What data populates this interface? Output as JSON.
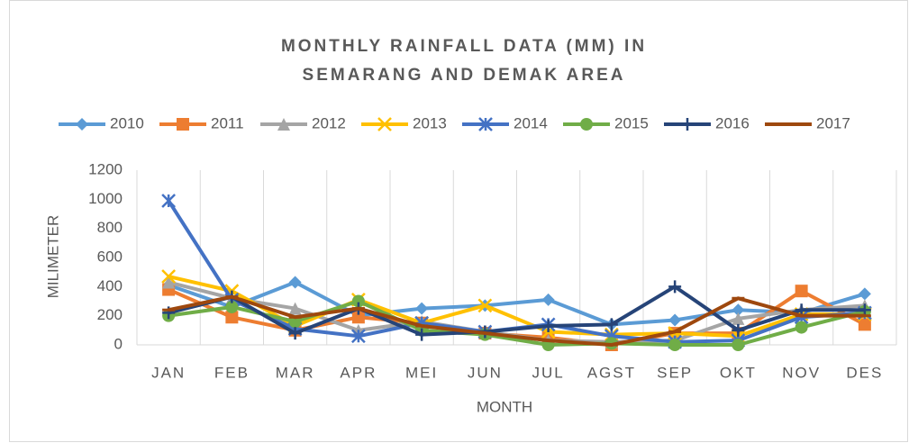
{
  "chart_data": {
    "type": "line",
    "title": "MONTHLY RAINFALL DATA (MM) IN SEMARANG AND DEMAK AREA",
    "x_label": "MONTH",
    "y_label": "MILIMETER",
    "categories": [
      "JAN",
      "FEB",
      "MAR",
      "APR",
      "MEI",
      "JUN",
      "JUL",
      "AGST",
      "SEP",
      "OKT",
      "NOV",
      "DES"
    ],
    "ylim": [
      0,
      1200
    ],
    "yticks": [
      0,
      200,
      400,
      600,
      800,
      1000,
      1200
    ],
    "legend": "top",
    "series": [
      {
        "name": "2010",
        "color": "#5b9bd5",
        "marker": "diamond",
        "values": [
          410,
          260,
          430,
          200,
          250,
          270,
          310,
          140,
          170,
          240,
          220,
          350
        ]
      },
      {
        "name": "2011",
        "color": "#ed7d31",
        "marker": "square",
        "values": [
          380,
          190,
          100,
          190,
          150,
          80,
          50,
          0,
          80,
          80,
          370,
          140
        ]
      },
      {
        "name": "2012",
        "color": "#a5a5a5",
        "marker": "triangle",
        "values": [
          430,
          320,
          250,
          100,
          160,
          90,
          30,
          20,
          30,
          180,
          240,
          270
        ]
      },
      {
        "name": "2013",
        "color": "#ffc000",
        "marker": "x",
        "values": [
          470,
          370,
          130,
          310,
          150,
          270,
          90,
          70,
          80,
          60,
          210,
          210
        ]
      },
      {
        "name": "2014",
        "color": "#4472c4",
        "marker": "star",
        "values": [
          990,
          310,
          110,
          60,
          150,
          90,
          140,
          60,
          20,
          30,
          190,
          220
        ]
      },
      {
        "name": "2015",
        "color": "#70ad47",
        "marker": "circle",
        "values": [
          200,
          260,
          160,
          300,
          100,
          70,
          0,
          10,
          0,
          0,
          120,
          230
        ]
      },
      {
        "name": "2016",
        "color": "#264478",
        "marker": "plus",
        "values": [
          220,
          330,
          80,
          250,
          70,
          90,
          130,
          140,
          400,
          100,
          240,
          240
        ]
      },
      {
        "name": "2017",
        "color": "#9e480e",
        "marker": "dash",
        "values": [
          240,
          330,
          190,
          250,
          130,
          80,
          30,
          0,
          90,
          320,
          200,
          200
        ]
      }
    ]
  }
}
